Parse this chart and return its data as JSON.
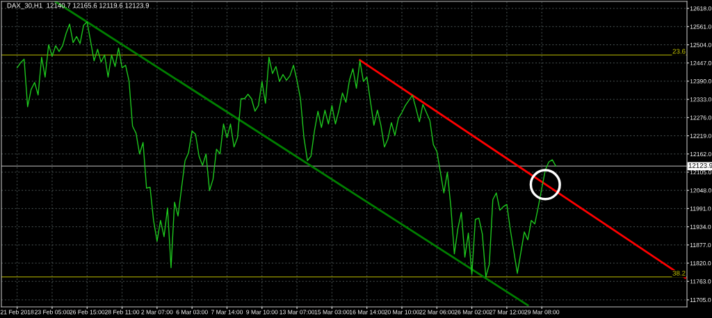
{
  "chart_data": {
    "type": "line",
    "title": "DAX_30,H1  12140.7 12165.6 12119.6 12123.9",
    "categories": [
      "21 Feb 2018",
      null,
      null,
      null,
      null,
      null,
      null,
      null,
      null,
      null,
      "23 Feb 05:00",
      null,
      null,
      null,
      null,
      null,
      null,
      null,
      null,
      null,
      "26 Feb 15:00",
      null,
      null,
      null,
      null,
      null,
      null,
      null,
      null,
      null,
      "28 Feb 11:00",
      null,
      null,
      null,
      null,
      null,
      null,
      null,
      null,
      null,
      "2 Mar 07:00",
      null,
      null,
      null,
      null,
      null,
      null,
      null,
      null,
      null,
      "6 Mar 03:00",
      null,
      null,
      null,
      null,
      null,
      null,
      null,
      null,
      null,
      "7 Mar 14:00",
      null,
      null,
      null,
      null,
      null,
      null,
      null,
      null,
      null,
      "9 Mar 10:00",
      null,
      null,
      null,
      null,
      null,
      null,
      null,
      null,
      null,
      "13 Mar 07:00",
      null,
      null,
      null,
      null,
      null,
      null,
      null,
      null,
      null,
      "15 Mar 03:00",
      null,
      null,
      null,
      null,
      null,
      null,
      null,
      null,
      null,
      "16 Mar 14:00",
      null,
      null,
      null,
      null,
      null,
      null,
      null,
      null,
      null,
      "20 Mar 10:00",
      null,
      null,
      null,
      null,
      null,
      null,
      null,
      null,
      null,
      "22 Mar 06:00",
      null,
      null,
      null,
      null,
      null,
      null,
      null,
      null,
      null,
      "26 Mar 02:00",
      null,
      null,
      null,
      null,
      null,
      null,
      null,
      null,
      null,
      "27 Mar 12:00",
      null,
      null,
      null,
      null,
      null,
      null,
      null,
      null,
      null,
      "29 Mar 08:00",
      null,
      null,
      null,
      null,
      null,
      null,
      null,
      null,
      null,
      null,
      null,
      null,
      null,
      null,
      null,
      null,
      null,
      null,
      null,
      null,
      null,
      null,
      null,
      null,
      null,
      null,
      null,
      null,
      null,
      null,
      null,
      null,
      null,
      null,
      null,
      null,
      null,
      null,
      null,
      null,
      null
    ],
    "ylim": [
      11683,
      12640
    ],
    "yticks": [
      {
        "value": 11705,
        "label": "11705.0"
      },
      {
        "value": 11763,
        "label": "11763.0"
      },
      {
        "value": 11820,
        "label": "11820.0"
      },
      {
        "value": 11877,
        "label": "11877.0"
      },
      {
        "value": 11934,
        "label": "11934.0"
      },
      {
        "value": 11991,
        "label": "11991.0"
      },
      {
        "value": 12048,
        "label": "12048.0"
      },
      {
        "value": 12105,
        "label": "12105.0"
      },
      {
        "value": 12162,
        "label": "12162.0"
      },
      {
        "value": 12219,
        "label": "12219.0"
      },
      {
        "value": 12276,
        "label": "12276.0"
      },
      {
        "value": 12333,
        "label": "12333.0"
      },
      {
        "value": 12390,
        "label": "12390.0"
      },
      {
        "value": 12447,
        "label": "12447.0"
      },
      {
        "value": 12504,
        "label": "12504.0"
      },
      {
        "value": 12561,
        "label": "12561.0"
      },
      {
        "value": 12618,
        "label": "12618.0"
      }
    ],
    "grid": true,
    "ref_lines": [
      {
        "axis": "y",
        "value": 12472,
        "color": "#808000"
      },
      {
        "axis": "y",
        "value": 11777,
        "color": "#808000"
      },
      {
        "axis": "y",
        "value": 12123.9,
        "label": "12123.9",
        "color": "#808080"
      }
    ],
    "annotations": [
      {
        "text": "23.6",
        "y": 12472
      },
      {
        "text": "38.2",
        "y": 11777
      }
    ],
    "series": [
      {
        "color": "#1ec81e",
        "values": [
          12432,
          12448,
          12459,
          12310,
          12364,
          12386,
          12347,
          12465,
          12403,
          12504,
          12468,
          12501,
          12483,
          12501,
          12540,
          12569,
          12511,
          12530,
          12508,
          12565,
          12576,
          12515,
          12454,
          12490,
          12450,
          12472,
          12403,
          12472,
          12436,
          12494,
          12432,
          12440,
          12390,
          12249,
          12227,
          12162,
          12198,
          12055,
          12058,
          11954,
          11889,
          11954,
          11903,
          11993,
          11806,
          12011,
          11968,
          12055,
          12141,
          12166,
          12234,
          12224,
          12155,
          12126,
          12162,
          12047,
          12083,
          12177,
          12162,
          12256,
          12213,
          12256,
          12184,
          12213,
          12335,
          12335,
          12349,
          12335,
          12296,
          12314,
          12389,
          12321,
          12465,
          12414,
          12436,
          12389,
          12411,
          12393,
          12407,
          12440,
          12393,
          12335,
          12213,
          12141,
          12155,
          12234,
          12296,
          12245,
          12299,
          12256,
          12314,
          12256,
          12299,
          12353,
          12324,
          12393,
          12429,
          12368,
          12454,
          12389,
          12403,
          12327,
          12252,
          12299,
          12252,
          12184,
          12209,
          12260,
          12220,
          12274,
          12292,
          12314,
          12330,
          12346,
          12306,
          12263,
          12317,
          12292,
          12267,
          12191,
          12170,
          12105,
          12040,
          12105,
          11997,
          11849,
          11928,
          11979,
          11839,
          11914,
          11785,
          11957,
          11961,
          11911,
          11777,
          11817,
          12019,
          12040,
          11986,
          11997,
          12004,
          11925,
          11857,
          11788,
          11853,
          11918,
          11893,
          11954,
          11943,
          11997,
          12055,
          12112,
          12137,
          12144,
          12124,
          null,
          null,
          null,
          null,
          null,
          null,
          null,
          null,
          null,
          null,
          null,
          null,
          null,
          null,
          null,
          null,
          null,
          null,
          null,
          null,
          null,
          null,
          null,
          null,
          null,
          null,
          null,
          null,
          null,
          null,
          null,
          null,
          null,
          null,
          null,
          null,
          null
        ]
      },
      {
        "type": "line",
        "color": "#008000",
        "values": [
          null,
          null,
          null,
          null,
          null,
          null,
          null,
          null,
          null,
          null,
          null,
          12639,
          null,
          null,
          null,
          null,
          null,
          null,
          null,
          null,
          null,
          null,
          null,
          null,
          null,
          null,
          null,
          null,
          null,
          null,
          null,
          null,
          null,
          null,
          null,
          null,
          null,
          null,
          null,
          null,
          null,
          null,
          null,
          null,
          null,
          null,
          null,
          null,
          null,
          null,
          null,
          null,
          null,
          null,
          null,
          null,
          null,
          null,
          null,
          null,
          null,
          null,
          null,
          null,
          null,
          null,
          null,
          null,
          null,
          null,
          null,
          null,
          null,
          null,
          null,
          null,
          null,
          null,
          null,
          null,
          null,
          null,
          null,
          null,
          null,
          null,
          null,
          null,
          null,
          null,
          null,
          null,
          null,
          null,
          null,
          null,
          null,
          null,
          null,
          null,
          null,
          null,
          null,
          null,
          null,
          null,
          null,
          null,
          null,
          null,
          null,
          null,
          null,
          null,
          null,
          null,
          null,
          null,
          null,
          null,
          null,
          null,
          null,
          null,
          null,
          null,
          null,
          null,
          null,
          null,
          null,
          null,
          null,
          null,
          null,
          null,
          null,
          null,
          null,
          null,
          null,
          null,
          null,
          null,
          null,
          null,
          11688,
          null,
          null,
          null,
          null,
          null,
          null,
          null,
          null,
          null,
          null,
          null,
          null,
          null,
          null,
          null,
          null,
          null,
          null,
          null,
          null,
          null,
          null,
          null,
          null,
          null,
          null,
          null,
          null,
          null,
          null,
          null,
          null,
          null,
          null,
          null,
          null,
          null,
          null,
          null,
          null,
          null,
          null,
          null,
          null,
          null
        ]
      },
      {
        "type": "line",
        "color": "#ff0000",
        "values": [
          null,
          null,
          null,
          null,
          null,
          null,
          null,
          null,
          null,
          null,
          null,
          null,
          null,
          null,
          null,
          null,
          null,
          null,
          null,
          null,
          null,
          null,
          null,
          null,
          null,
          null,
          null,
          null,
          null,
          null,
          null,
          null,
          null,
          null,
          null,
          null,
          null,
          null,
          null,
          null,
          null,
          null,
          null,
          null,
          null,
          null,
          null,
          null,
          null,
          null,
          null,
          null,
          null,
          null,
          null,
          null,
          null,
          null,
          null,
          null,
          null,
          null,
          null,
          null,
          null,
          null,
          null,
          null,
          null,
          null,
          null,
          null,
          null,
          null,
          null,
          null,
          null,
          null,
          null,
          null,
          null,
          null,
          null,
          null,
          null,
          null,
          null,
          null,
          null,
          null,
          null,
          null,
          null,
          null,
          null,
          null,
          null,
          null,
          12456,
          null,
          null,
          null,
          null,
          null,
          null,
          null,
          null,
          null,
          null,
          null,
          null,
          null,
          null,
          null,
          null,
          null,
          null,
          null,
          null,
          null,
          null,
          null,
          null,
          null,
          null,
          null,
          null,
          null,
          null,
          null,
          null,
          null,
          null,
          null,
          null,
          null,
          null,
          null,
          null,
          null,
          null,
          null,
          null,
          null,
          null,
          null,
          null,
          null,
          null,
          null,
          null,
          null,
          null,
          null,
          null,
          null,
          null,
          null,
          null,
          null,
          null,
          null,
          null,
          null,
          null,
          null,
          null,
          null,
          null,
          null,
          null,
          null,
          null,
          null,
          null,
          null,
          null,
          null,
          null,
          null,
          null,
          null,
          null,
          null,
          null,
          null,
          null,
          null,
          null,
          null,
          null,
          11774
        ]
      },
      {
        "type": "scatter",
        "color": "#ffffff",
        "marker": "circle",
        "values": [
          null,
          null,
          null,
          null,
          null,
          null,
          null,
          null,
          null,
          null,
          null,
          null,
          null,
          null,
          null,
          null,
          null,
          null,
          null,
          null,
          null,
          null,
          null,
          null,
          null,
          null,
          null,
          null,
          null,
          null,
          null,
          null,
          null,
          null,
          null,
          null,
          null,
          null,
          null,
          null,
          null,
          null,
          null,
          null,
          null,
          null,
          null,
          null,
          null,
          null,
          null,
          null,
          null,
          null,
          null,
          null,
          null,
          null,
          null,
          null,
          null,
          null,
          null,
          null,
          null,
          null,
          null,
          null,
          null,
          null,
          null,
          null,
          null,
          null,
          null,
          null,
          null,
          null,
          null,
          null,
          null,
          null,
          null,
          null,
          null,
          null,
          null,
          null,
          null,
          null,
          null,
          null,
          null,
          null,
          null,
          null,
          null,
          null,
          null,
          null,
          null,
          null,
          null,
          null,
          null,
          null,
          null,
          null,
          null,
          null,
          null,
          null,
          null,
          null,
          null,
          null,
          null,
          null,
          null,
          null,
          null,
          null,
          null,
          null,
          null,
          null,
          null,
          null,
          null,
          null,
          null,
          null,
          null,
          null,
          null,
          null,
          null,
          null,
          null,
          null,
          null,
          null,
          null,
          null,
          null,
          null,
          null,
          null,
          null,
          null,
          null,
          12066,
          null,
          null,
          null,
          null,
          null,
          null,
          null,
          null,
          null,
          null,
          null,
          null,
          null,
          null,
          null,
          null,
          null,
          null,
          null,
          null,
          null,
          null,
          null,
          null,
          null,
          null,
          null,
          null,
          null,
          null,
          null,
          null,
          null,
          null,
          null,
          null,
          null,
          null,
          null,
          null
        ]
      }
    ]
  }
}
